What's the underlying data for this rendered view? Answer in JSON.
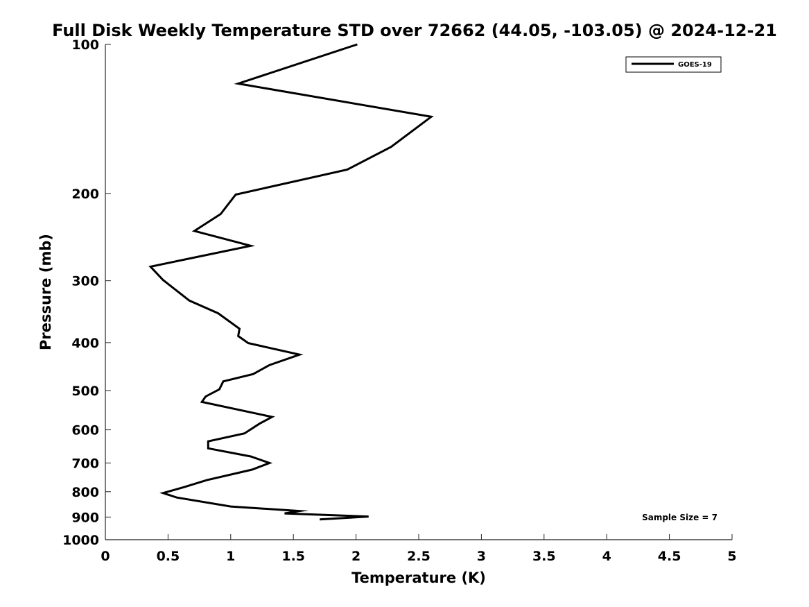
{
  "chart_data": {
    "type": "line",
    "title": "Full Disk Weekly Temperature STD over 72662 (44.05, -103.05) @ 2024-12-21",
    "xlabel": "Temperature (K)",
    "ylabel": "Pressure (mb)",
    "xlim": [
      0,
      5
    ],
    "ylim": [
      1000,
      100
    ],
    "yscale": "log",
    "y_reversed": true,
    "x_ticks": [
      "0",
      "0.5",
      "1",
      "1.5",
      "2",
      "2.5",
      "3",
      "3.5",
      "4",
      "4.5",
      "5"
    ],
    "x_tick_values": [
      0,
      0.5,
      1,
      1.5,
      2,
      2.5,
      3,
      3.5,
      4,
      4.5,
      5
    ],
    "y_ticks": [
      "100",
      "200",
      "300",
      "400",
      "500",
      "600",
      "700",
      "800",
      "900",
      "1000"
    ],
    "y_tick_values": [
      100,
      200,
      300,
      400,
      500,
      600,
      700,
      800,
      900,
      1000
    ],
    "grid": false,
    "legend_position": "top-right",
    "annotation": "Sample Size = 7",
    "series": [
      {
        "name": "GOES-19",
        "color": "#000000",
        "x": [
          2.01,
          1.06,
          2.6,
          2.28,
          1.93,
          1.04,
          0.92,
          0.71,
          1.16,
          0.36,
          0.46,
          0.67,
          0.9,
          1.07,
          1.06,
          1.14,
          1.55,
          1.31,
          1.18,
          0.94,
          0.91,
          0.8,
          0.77,
          1.33,
          1.23,
          1.11,
          0.82,
          0.82,
          1.16,
          1.31,
          1.17,
          0.81,
          0.63,
          0.46,
          0.57,
          1.0,
          1.55,
          1.43,
          2.1,
          1.71
        ],
        "y": [
          100,
          120,
          140,
          161,
          179,
          201,
          220,
          238,
          255,
          281,
          299,
          329,
          349,
          375,
          388,
          401,
          423,
          444,
          463,
          479,
          497,
          514,
          527,
          565,
          583,
          610,
          633,
          654,
          679,
          700,
          722,
          758,
          783,
          805,
          822,
          857,
          875,
          885,
          898,
          910
        ]
      }
    ]
  }
}
